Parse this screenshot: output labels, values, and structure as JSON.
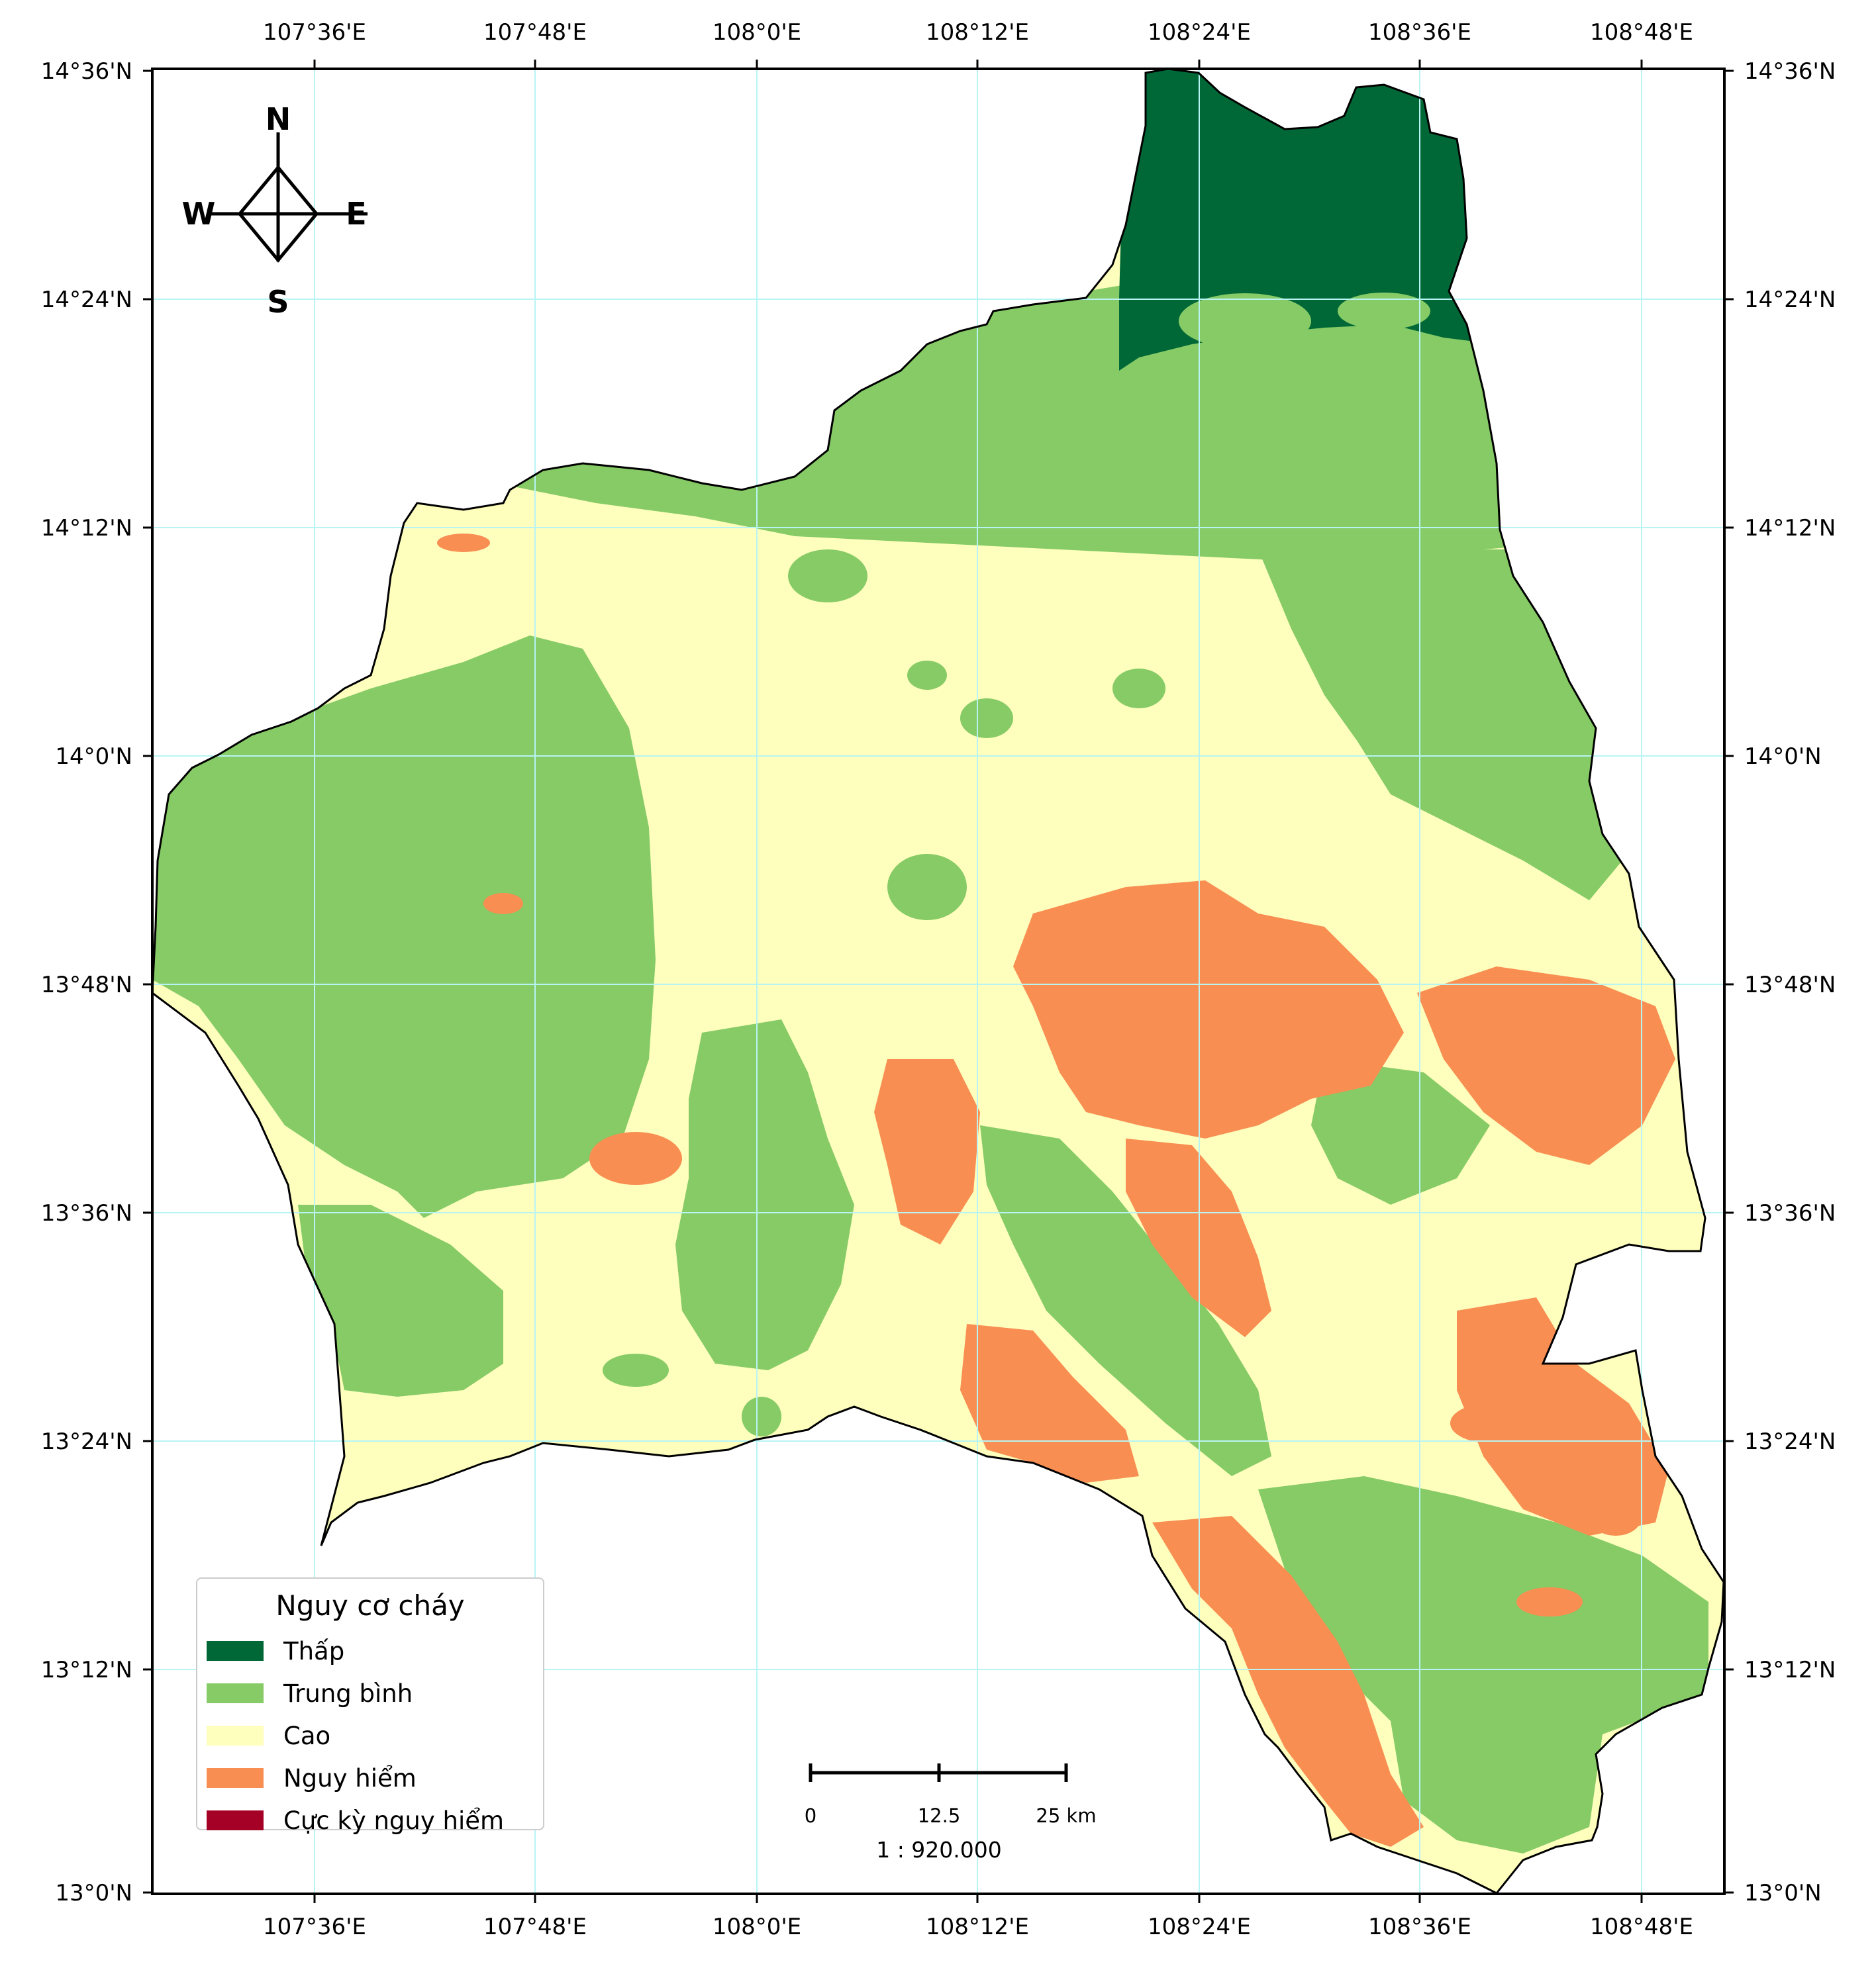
{
  "map": {
    "colors": {
      "low": "#006837",
      "medium": "#86cb66",
      "high": "#fefebd",
      "dangerous": "#f98e52",
      "extreme": "#a50026",
      "grid": "#b8f4f4",
      "boundary": "#000000"
    },
    "longitude_ticks": [
      "107°36'E",
      "107°48'E",
      "108°0'E",
      "108°12'E",
      "108°24'E",
      "108°36'E",
      "108°48'E"
    ],
    "latitude_ticks": [
      "14°36'N",
      "14°24'N",
      "14°12'N",
      "14°0'N",
      "13°48'N",
      "13°36'N",
      "13°24'N",
      "13°12'N",
      "13°0'N"
    ]
  },
  "compass": {
    "north": "N",
    "south": "S",
    "east": "E",
    "west": "W",
    "icon": "north-arrow-icon"
  },
  "legend": {
    "title": "Nguy cơ cháy",
    "items": [
      {
        "label": "Thấp",
        "color": "#006837"
      },
      {
        "label": "Trung bình",
        "color": "#86cb66"
      },
      {
        "label": "Cao",
        "color": "#fefebd"
      },
      {
        "label": "Nguy hiểm",
        "color": "#f98e52"
      },
      {
        "label": "Cực kỳ nguy hiểm",
        "color": "#a50026"
      }
    ]
  },
  "scale_bar": {
    "labels": [
      "0",
      "12.5",
      "25 km"
    ],
    "ratio": "1 : 920.000"
  }
}
